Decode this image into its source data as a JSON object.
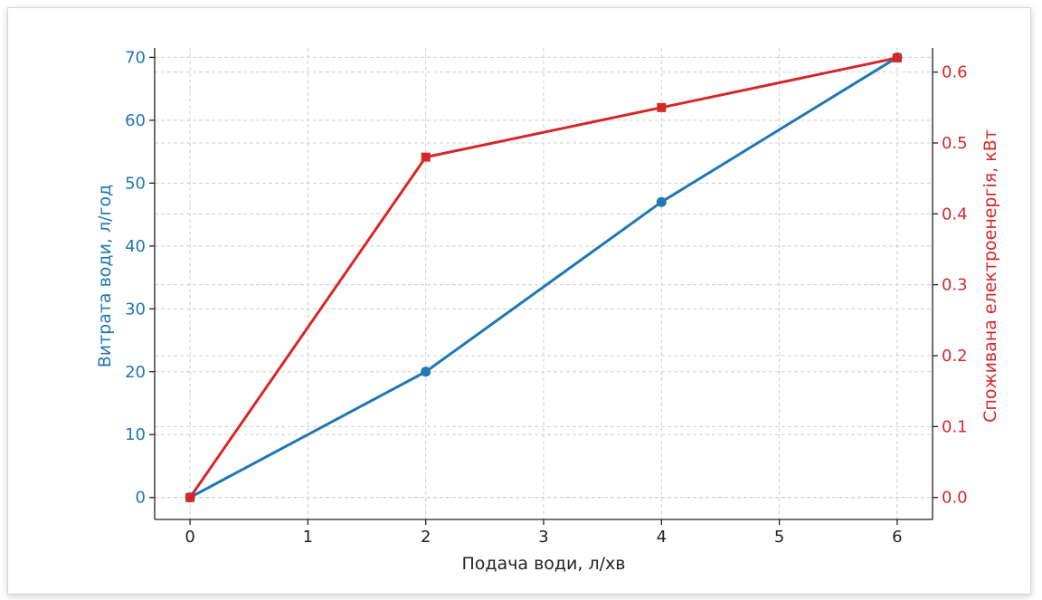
{
  "chart_data": {
    "type": "line",
    "x": [
      0,
      2,
      4,
      6
    ],
    "xlabel": "Подача води, л/хв",
    "xlim": [
      -0.3,
      6.3
    ],
    "xticks": [
      "0",
      "1",
      "2",
      "3",
      "4",
      "5",
      "6"
    ],
    "grid": true,
    "series": [
      {
        "axis": "left",
        "values": [
          0,
          20,
          47,
          70
        ],
        "color": "#1f77b4",
        "marker": "circle"
      },
      {
        "axis": "right",
        "values": [
          0.0,
          0.48,
          0.55,
          0.62
        ],
        "color": "#d62728",
        "marker": "square"
      }
    ],
    "y_left": {
      "label": "Витрата води, л/год",
      "ylim": [
        -3.5,
        71.5
      ],
      "ticks": [
        "0",
        "10",
        "20",
        "30",
        "40",
        "50",
        "60",
        "70"
      ],
      "color": "#1f77b4"
    },
    "y_right": {
      "label": "Споживана електроенергія, кВт",
      "ylim": [
        -0.031,
        0.634
      ],
      "ticks": [
        "0.0",
        "0.1",
        "0.2",
        "0.3",
        "0.4",
        "0.5",
        "0.6"
      ],
      "color": "#d62728"
    }
  }
}
